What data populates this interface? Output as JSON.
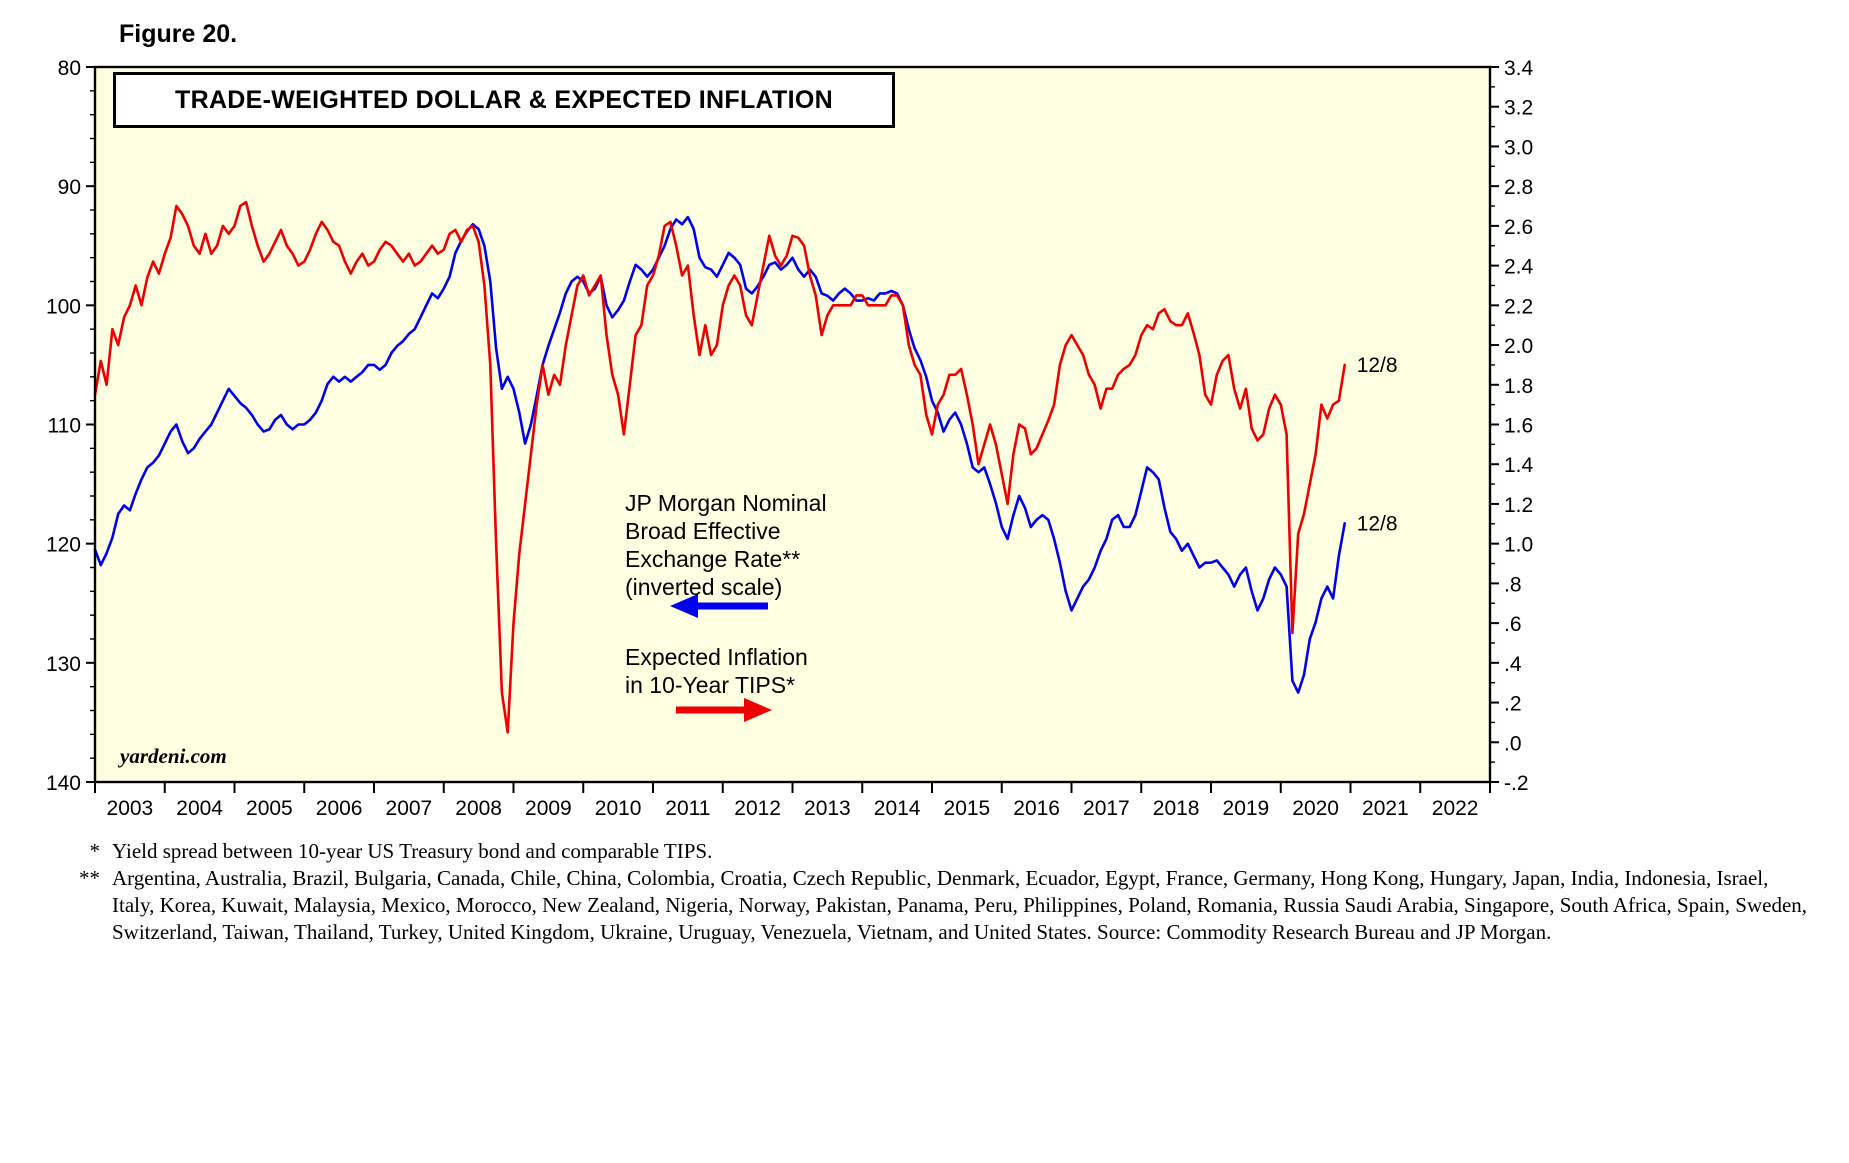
{
  "figure_label": "Figure 20.",
  "watermark": "yardeni.com",
  "chart_data": {
    "type": "line",
    "title": "TRADE-WEIGHTED DOLLAR & EXPECTED INFLATION",
    "plot_background": "#FFFFE2",
    "frame_color": "#000000",
    "x_axis": {
      "range": [
        2003,
        2023
      ],
      "year_labels": [
        "2003",
        "2004",
        "2005",
        "2006",
        "2007",
        "2008",
        "2009",
        "2010",
        "2011",
        "2012",
        "2013",
        "2014",
        "2015",
        "2016",
        "2017",
        "2018",
        "2019",
        "2020",
        "2021",
        "2022"
      ]
    },
    "left_axis": {
      "min": 80,
      "max": 140,
      "inverted": true,
      "ticks": [
        80,
        90,
        100,
        110,
        120,
        130,
        140
      ],
      "minor_step": 2
    },
    "right_axis": {
      "min": -0.2,
      "max": 3.4,
      "tick_step": 0.2,
      "minor_step": 0.1,
      "tick_labels": [
        "3.4",
        "3.2",
        "3.0",
        "2.8",
        "2.6",
        "2.4",
        "2.2",
        "2.0",
        "1.8",
        "1.6",
        "1.4",
        "1.2",
        "1.0",
        ".8",
        ".6",
        ".4",
        ".2",
        ".0",
        "-.2"
      ]
    },
    "series": [
      {
        "name": "JP Morgan Nominal Broad Effective Exchange Rate (inverted scale)",
        "color": "#0000EE",
        "axis": "left",
        "start_year": 2003,
        "interval": "monthly",
        "values": [
          120.5,
          121.8,
          120.8,
          119.5,
          117.5,
          116.8,
          117.2,
          115.8,
          114.6,
          113.6,
          113.2,
          112.6,
          111.6,
          110.6,
          110.0,
          111.4,
          112.4,
          112.0,
          111.2,
          110.6,
          110.0,
          109.0,
          108.0,
          107.0,
          107.6,
          108.2,
          108.6,
          109.2,
          110.0,
          110.6,
          110.4,
          109.6,
          109.2,
          110.0,
          110.4,
          110.0,
          110.0,
          109.6,
          109.0,
          108.0,
          106.6,
          106.0,
          106.4,
          106.0,
          106.4,
          106.0,
          105.6,
          105.0,
          105.0,
          105.4,
          105.0,
          104.0,
          103.4,
          103.0,
          102.4,
          102.0,
          101.0,
          100.0,
          99.0,
          99.4,
          98.6,
          97.6,
          95.6,
          94.6,
          93.8,
          93.2,
          93.6,
          95.0,
          98.0,
          103.6,
          107.0,
          106.0,
          107.0,
          109.0,
          111.6,
          110.0,
          107.6,
          105.0,
          103.4,
          102.0,
          100.6,
          99.0,
          98.0,
          97.6,
          98.0,
          99.0,
          98.6,
          97.6,
          100.0,
          101.0,
          100.4,
          99.6,
          98.0,
          96.6,
          97.0,
          97.6,
          97.0,
          96.0,
          95.0,
          93.6,
          92.8,
          93.2,
          92.6,
          93.6,
          96.0,
          96.8,
          97.0,
          97.6,
          96.6,
          95.6,
          96.0,
          96.6,
          98.6,
          99.0,
          98.4,
          97.6,
          96.6,
          96.4,
          97.0,
          96.6,
          96.0,
          97.0,
          97.6,
          97.0,
          97.6,
          99.0,
          99.2,
          99.6,
          99.0,
          98.6,
          99.0,
          99.6,
          99.6,
          99.4,
          99.6,
          99.0,
          99.0,
          98.8,
          99.0,
          100.0,
          102.0,
          103.6,
          104.6,
          106.0,
          108.0,
          109.0,
          110.6,
          109.6,
          109.0,
          110.0,
          111.6,
          113.6,
          114.0,
          113.6,
          115.0,
          116.6,
          118.6,
          119.6,
          117.6,
          116.0,
          117.0,
          118.6,
          118.0,
          117.6,
          118.0,
          119.6,
          121.6,
          124.0,
          125.6,
          124.6,
          123.6,
          123.0,
          122.0,
          120.6,
          119.6,
          118.0,
          117.6,
          118.6,
          118.6,
          117.6,
          115.6,
          113.6,
          114.0,
          114.6,
          117.0,
          119.0,
          119.6,
          120.6,
          120.0,
          121.0,
          122.0,
          121.6,
          121.6,
          121.4,
          122.0,
          122.6,
          123.6,
          122.6,
          122.0,
          124.0,
          125.6,
          124.6,
          123.0,
          122.0,
          122.6,
          123.6,
          131.5,
          132.5,
          131.0,
          128.0,
          126.6,
          124.6,
          123.6,
          124.6,
          121.0,
          118.3
        ]
      },
      {
        "name": "Expected Inflation in 10-Year TIPS",
        "color": "#EE0000",
        "axis": "right",
        "start_year": 2003,
        "interval": "monthly",
        "values": [
          1.75,
          1.92,
          1.8,
          2.08,
          2.0,
          2.14,
          2.2,
          2.3,
          2.2,
          2.34,
          2.42,
          2.36,
          2.46,
          2.54,
          2.7,
          2.66,
          2.6,
          2.5,
          2.46,
          2.56,
          2.46,
          2.5,
          2.6,
          2.56,
          2.6,
          2.7,
          2.72,
          2.6,
          2.5,
          2.42,
          2.46,
          2.52,
          2.58,
          2.5,
          2.46,
          2.4,
          2.42,
          2.48,
          2.56,
          2.62,
          2.58,
          2.52,
          2.5,
          2.42,
          2.36,
          2.42,
          2.46,
          2.4,
          2.42,
          2.48,
          2.52,
          2.5,
          2.46,
          2.42,
          2.46,
          2.4,
          2.42,
          2.46,
          2.5,
          2.46,
          2.48,
          2.56,
          2.58,
          2.52,
          2.58,
          2.6,
          2.52,
          2.3,
          1.9,
          1.0,
          0.25,
          0.05,
          0.6,
          0.95,
          1.2,
          1.45,
          1.7,
          1.9,
          1.75,
          1.85,
          1.8,
          2.0,
          2.15,
          2.3,
          2.35,
          2.25,
          2.3,
          2.35,
          2.05,
          1.85,
          1.75,
          1.55,
          1.8,
          2.05,
          2.1,
          2.3,
          2.35,
          2.45,
          2.6,
          2.62,
          2.5,
          2.35,
          2.4,
          2.15,
          1.95,
          2.1,
          1.95,
          2.0,
          2.2,
          2.3,
          2.35,
          2.3,
          2.15,
          2.1,
          2.25,
          2.4,
          2.55,
          2.45,
          2.4,
          2.45,
          2.55,
          2.54,
          2.5,
          2.35,
          2.25,
          2.05,
          2.15,
          2.2,
          2.2,
          2.2,
          2.2,
          2.25,
          2.25,
          2.2,
          2.2,
          2.2,
          2.2,
          2.25,
          2.25,
          2.2,
          2.0,
          1.9,
          1.85,
          1.65,
          1.55,
          1.7,
          1.75,
          1.85,
          1.85,
          1.88,
          1.75,
          1.6,
          1.4,
          1.5,
          1.6,
          1.5,
          1.35,
          1.2,
          1.45,
          1.6,
          1.58,
          1.45,
          1.48,
          1.55,
          1.62,
          1.7,
          1.9,
          2.0,
          2.05,
          2.0,
          1.95,
          1.85,
          1.8,
          1.68,
          1.78,
          1.78,
          1.85,
          1.88,
          1.9,
          1.95,
          2.05,
          2.1,
          2.08,
          2.16,
          2.18,
          2.12,
          2.1,
          2.1,
          2.16,
          2.06,
          1.95,
          1.75,
          1.7,
          1.85,
          1.92,
          1.95,
          1.78,
          1.68,
          1.78,
          1.58,
          1.52,
          1.55,
          1.68,
          1.75,
          1.7,
          1.55,
          0.55,
          1.05,
          1.15,
          1.3,
          1.45,
          1.7,
          1.63,
          1.7,
          1.72,
          1.9
        ]
      }
    ],
    "end_labels": [
      {
        "series_index": 0,
        "text": "12/8"
      },
      {
        "series_index": 1,
        "text": "12/8"
      }
    ],
    "legend": {
      "blue_label": "JP Morgan Nominal\nBroad Effective\nExchange Rate**\n(inverted scale)",
      "red_label": "Expected Inflation\nin 10-Year TIPS*"
    }
  },
  "footnotes": [
    {
      "marker": "*",
      "text": "Yield spread between 10-year US Treasury bond and comparable TIPS."
    },
    {
      "marker": "**",
      "text": "Argentina, Australia, Brazil, Bulgaria, Canada, Chile, China, Colombia, Croatia, Czech Republic, Denmark, Ecuador, Egypt, France, Germany, Hong Kong, Hungary, Japan, India, Indonesia, Israel, Italy, Korea, Kuwait, Malaysia, Mexico, Morocco, New Zealand, Nigeria, Norway, Pakistan, Panama, Peru, Philippines, Poland, Romania, Russia Saudi Arabia, Singapore, South Africa, Spain, Sweden, Switzerland, Taiwan, Thailand, Turkey, United Kingdom, Ukraine, Uruguay, Venezuela, Vietnam, and United States. Source: Commodity Research Bureau and JP Morgan."
    }
  ]
}
